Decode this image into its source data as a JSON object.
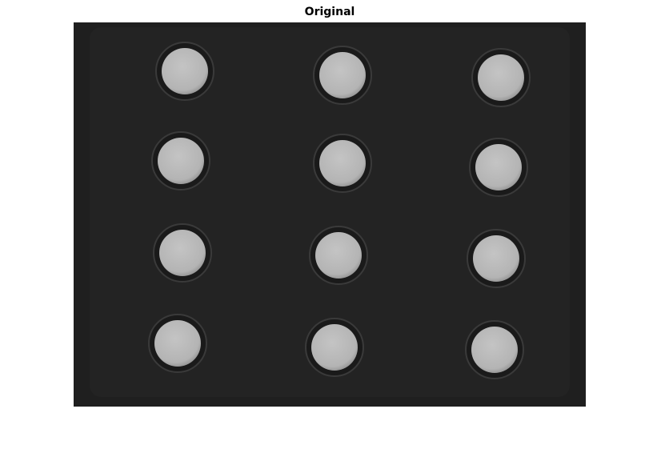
{
  "title": "Original"
}
